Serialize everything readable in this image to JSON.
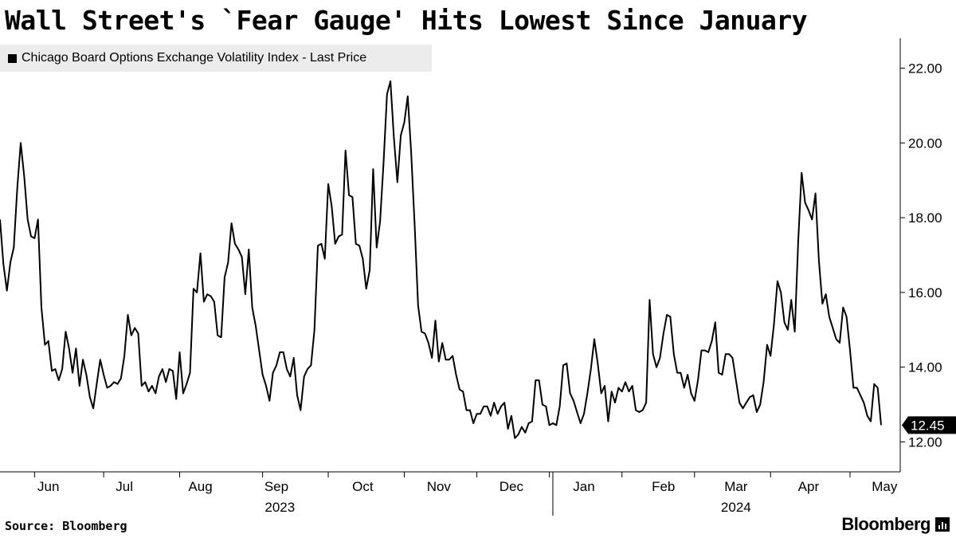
{
  "title": "Wall Street's `Fear Gauge' Hits Lowest Since January",
  "legend": {
    "label": "Chicago Board Options Exchange Volatility Index - Last Price"
  },
  "source": "Source: Bloomberg",
  "brand": {
    "name": "Bloomberg",
    "icon": "bloomberg-chart-icon"
  },
  "colors": {
    "line": "#000000",
    "axis": "#000000",
    "legend_bg": "#ececec",
    "label_bg": "#000000",
    "label_text": "#ffffff"
  },
  "chart_data": {
    "type": "line",
    "title": "Wall Street's `Fear Gauge' Hits Lowest Since January",
    "series": [
      {
        "name": "Chicago Board Options Exchange Volatility Index - Last Price",
        "values": [
          17.95,
          16.75,
          16.05,
          16.8,
          17.2,
          18.8,
          20.0,
          19.1,
          17.95,
          17.5,
          17.45,
          17.95,
          15.6,
          14.6,
          14.7,
          13.9,
          13.95,
          13.65,
          13.95,
          14.95,
          14.5,
          13.85,
          14.5,
          13.5,
          14.2,
          13.8,
          13.2,
          12.9,
          13.55,
          14.2,
          13.8,
          13.45,
          13.5,
          13.6,
          13.55,
          13.7,
          14.3,
          15.4,
          14.85,
          15.05,
          14.9,
          13.5,
          13.6,
          13.35,
          13.5,
          13.3,
          13.75,
          13.95,
          13.6,
          13.95,
          13.9,
          13.15,
          14.4,
          13.3,
          13.55,
          13.85,
          16.1,
          16.0,
          17.05,
          15.75,
          15.95,
          15.9,
          15.75,
          14.85,
          14.8,
          16.4,
          16.8,
          17.85,
          17.3,
          17.15,
          16.95,
          15.95,
          17.15,
          15.6,
          15.1,
          14.45,
          13.8,
          13.5,
          13.1,
          13.85,
          14.05,
          14.4,
          14.4,
          13.95,
          13.75,
          14.25,
          13.25,
          12.85,
          13.75,
          13.95,
          14.05,
          15.0,
          17.25,
          17.3,
          16.9,
          18.9,
          18.3,
          17.3,
          17.5,
          17.55,
          19.8,
          18.6,
          18.55,
          17.3,
          17.25,
          16.9,
          16.1,
          16.6,
          19.3,
          17.2,
          17.9,
          19.45,
          21.3,
          21.65,
          20.15,
          18.95,
          20.2,
          20.55,
          21.25,
          19.75,
          17.8,
          15.65,
          14.95,
          14.9,
          14.65,
          14.25,
          15.25,
          14.15,
          14.65,
          14.2,
          14.2,
          14.3,
          13.8,
          13.4,
          13.35,
          12.85,
          12.85,
          12.5,
          12.75,
          12.75,
          12.95,
          12.95,
          12.7,
          13.05,
          12.75,
          12.95,
          13.05,
          12.35,
          12.7,
          12.1,
          12.2,
          12.4,
          12.25,
          12.5,
          12.55,
          13.65,
          13.65,
          13.0,
          12.95,
          12.45,
          12.5,
          12.45,
          12.95,
          14.05,
          14.1,
          13.3,
          13.1,
          12.8,
          12.5,
          12.75,
          13.3,
          13.95,
          14.75,
          14.1,
          13.3,
          13.5,
          12.55,
          13.35,
          13.05,
          13.45,
          13.35,
          13.6,
          13.35,
          13.5,
          12.85,
          12.8,
          12.85,
          13.05,
          15.8,
          14.35,
          14.0,
          14.25,
          14.9,
          15.4,
          15.35,
          14.35,
          13.85,
          13.85,
          13.45,
          13.8,
          13.3,
          13.1,
          13.65,
          14.45,
          14.45,
          14.4,
          14.7,
          15.2,
          13.85,
          13.8,
          14.35,
          14.35,
          14.25,
          13.65,
          13.05,
          12.9,
          13.05,
          13.2,
          13.25,
          12.8,
          13.0,
          13.6,
          14.6,
          14.3,
          15.15,
          16.3,
          16.0,
          15.2,
          15.0,
          15.8,
          14.95,
          17.35,
          19.2,
          18.4,
          18.2,
          17.95,
          18.65,
          16.85,
          15.7,
          15.95,
          15.35,
          15.05,
          14.75,
          14.65,
          15.6,
          15.35,
          14.45,
          13.45,
          13.45,
          13.25,
          13.05,
          12.7,
          12.55,
          13.55,
          13.45,
          12.45
        ]
      }
    ],
    "last_value_label": "12.45",
    "y_axis": {
      "min": 11.2,
      "max": 22.8,
      "ticks": [
        12,
        14,
        16,
        18,
        20,
        22
      ],
      "tick_labels": [
        "12.00",
        "14.00",
        "16.00",
        "18.00",
        "20.00",
        "22.00"
      ],
      "position": "right",
      "grid": false
    },
    "x_axis": {
      "month_labels": [
        "Jun",
        "Jul",
        "Aug",
        "Sep",
        "Oct",
        "Nov",
        "Dec",
        "Jan",
        "Feb",
        "Mar",
        "Apr",
        "May"
      ],
      "month_label_index": [
        14,
        36,
        58,
        80,
        105,
        127,
        148,
        169,
        192,
        213,
        234,
        256
      ],
      "boundary_index": [
        10,
        30,
        52,
        76,
        95,
        117,
        138,
        159,
        180,
        201,
        223,
        246
      ],
      "year_labels": [
        {
          "label": "2023",
          "index": 81
        },
        {
          "label": "2024",
          "index": 213
        }
      ],
      "year_boundary_index": 160
    },
    "xlabel": "",
    "ylabel": ""
  }
}
